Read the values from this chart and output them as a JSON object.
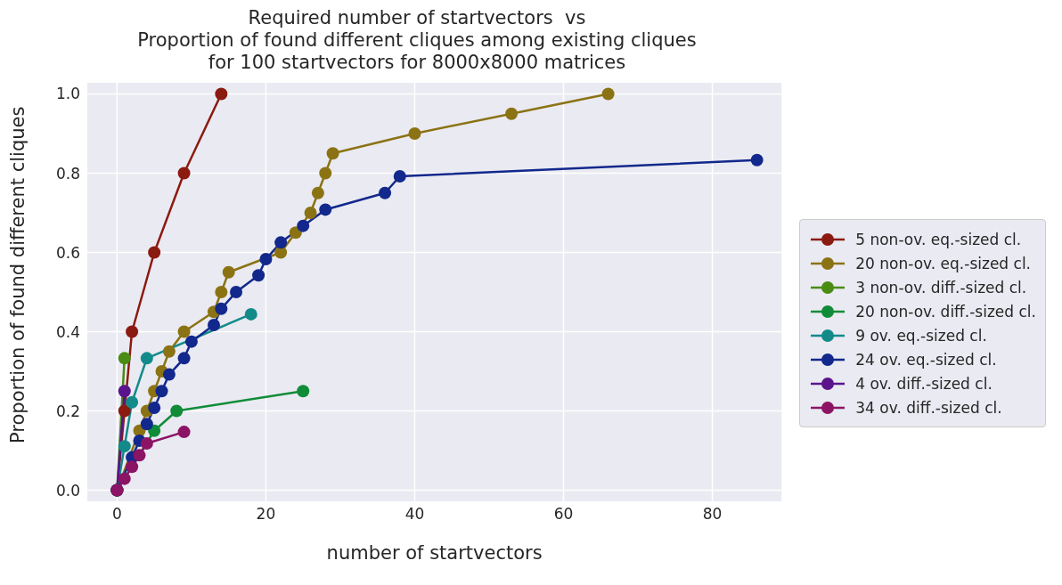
{
  "chart_data": {
    "type": "line",
    "title": "Required number of startvectors  vs\nProportion of found different cliques among existing cliques\nfor 100 startvectors for 8000x8000 matrices",
    "xlabel": "number of startvectors",
    "ylabel": "Proportion of found different cliques",
    "xlim": [
      -4,
      89.3
    ],
    "ylim": [
      -0.028,
      1.028
    ],
    "xticks": [
      0,
      20,
      40,
      60,
      80
    ],
    "yticks": [
      {
        "value": 0,
        "label": "0.0"
      },
      0.2,
      0.4,
      0.6,
      0.8,
      {
        "value": 1,
        "label": "1.0"
      }
    ],
    "grid": true,
    "legend": "right",
    "marker": "circle",
    "line_style": "solid",
    "series": [
      {
        "name": "5 non-ov. eq.-sized cl.",
        "color": "#8b1a10",
        "x": [
          0,
          1,
          2,
          5,
          9,
          14
        ],
        "values": [
          0,
          0.2,
          0.4,
          0.6,
          0.8,
          1.0
        ]
      },
      {
        "name": "20 non-ov. eq.-sized cl.",
        "color": "#8b7314",
        "x": [
          0,
          1,
          2,
          3,
          4,
          5,
          6,
          7,
          9,
          13,
          14,
          15,
          22,
          24,
          26,
          27,
          28,
          29,
          40,
          53,
          66
        ],
        "values": [
          0,
          null,
          null,
          0.15,
          0.2,
          0.25,
          0.3,
          0.35,
          0.4,
          0.45,
          0.5,
          0.55,
          0.6,
          0.65,
          0.7,
          0.75,
          0.8,
          0.85,
          0.9,
          0.95,
          1.0
        ]
      },
      {
        "name": "3 non-ov. diff.-sized cl.",
        "color": "#4a8c14",
        "x": [
          0,
          1
        ],
        "values": [
          0,
          0.333
        ]
      },
      {
        "name": "20 non-ov. diff.-sized cl.",
        "color": "#108c38",
        "x": [
          0,
          1,
          2,
          5,
          8,
          25
        ],
        "values": [
          0,
          null,
          null,
          0.15,
          0.2,
          0.25
        ]
      },
      {
        "name": "9 ov. eq.-sized cl.",
        "color": "#138a8a",
        "x": [
          0,
          1,
          2,
          4,
          18
        ],
        "values": [
          0,
          0.111,
          0.222,
          0.333,
          0.444
        ]
      },
      {
        "name": "24 ov. eq.-sized cl.",
        "color": "#12288c",
        "x": [
          0,
          1,
          2,
          3,
          4,
          5,
          6,
          7,
          9,
          10,
          13,
          14,
          16,
          19,
          20,
          22,
          25,
          28,
          36,
          38,
          86
        ],
        "values": [
          0,
          null,
          0.083,
          0.125,
          0.167,
          0.208,
          0.25,
          0.292,
          0.333,
          0.375,
          0.417,
          0.458,
          0.5,
          0.542,
          0.583,
          0.625,
          0.667,
          0.708,
          0.75,
          0.792,
          0.833
        ]
      },
      {
        "name": "4 ov. diff.-sized cl.",
        "color": "#5a148c",
        "x": [
          0,
          1
        ],
        "values": [
          0,
          0.25
        ]
      },
      {
        "name": "34 ov. diff.-sized cl.",
        "color": "#8c1464",
        "x": [
          0,
          1,
          2,
          3,
          4,
          9
        ],
        "values": [
          0,
          0.029,
          0.059,
          0.088,
          0.118,
          0.147
        ]
      }
    ]
  }
}
